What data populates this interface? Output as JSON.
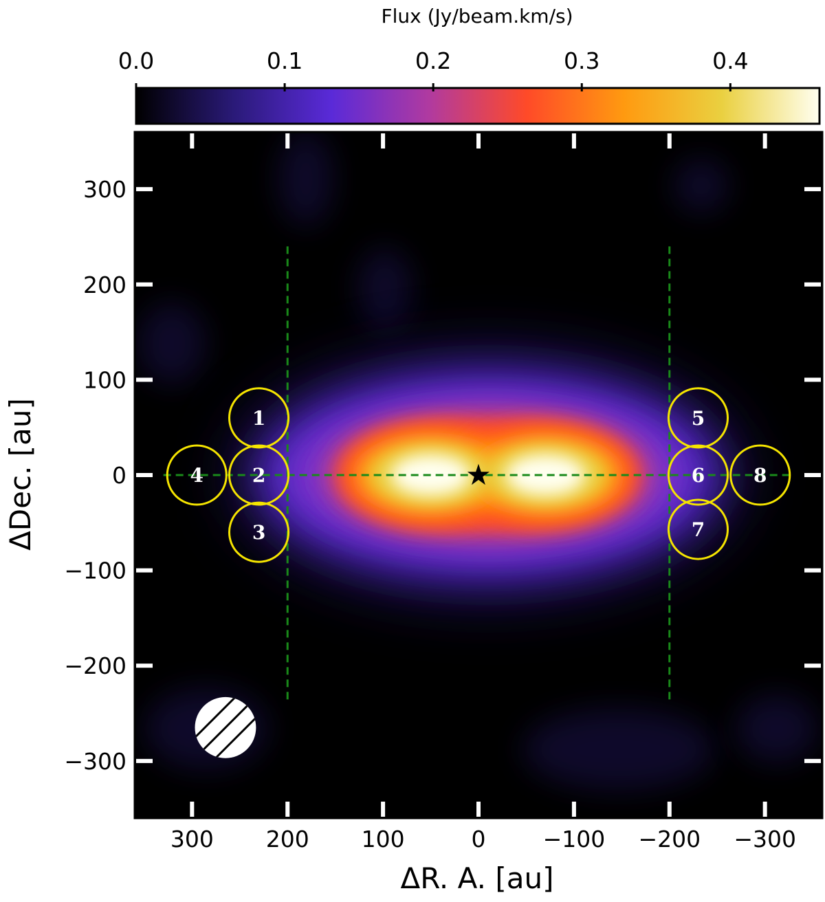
{
  "chart_data": {
    "type": "heatmap",
    "title": "",
    "xlabel": "ΔR. A.  [au]",
    "ylabel": "ΔDec.  [au]",
    "xlim": [
      360,
      -360
    ],
    "ylim": [
      -360,
      360
    ],
    "x_ticks": [
      300,
      200,
      100,
      0,
      -100,
      -200,
      -300
    ],
    "x_tick_labels": [
      "300",
      "200",
      "100",
      "0",
      "−100",
      "−200",
      "−300"
    ],
    "y_ticks": [
      300,
      200,
      100,
      0,
      -100,
      -200,
      -300
    ],
    "y_tick_labels": [
      "300",
      "200",
      "100",
      "0",
      "−100",
      "−200",
      "−300"
    ],
    "colorbar": {
      "label": "Flux (Jy/beam.km/s)",
      "range": [
        0.0,
        0.46
      ],
      "ticks": [
        0.0,
        0.1,
        0.2,
        0.3,
        0.4
      ],
      "tick_labels": [
        "0.0",
        "0.1",
        "0.2",
        "0.3",
        "0.4"
      ],
      "colormap": [
        "#000000",
        "#2a1a78",
        "#5a2ad8",
        "#b03aa0",
        "#ff4a28",
        "#ff9a10",
        "#ead040",
        "#fffff0"
      ]
    },
    "emission_peaks": [
      {
        "x": 50,
        "y": 0,
        "flux": 0.46
      },
      {
        "x": -70,
        "y": 0,
        "flux": 0.46
      }
    ],
    "star": {
      "x": 0,
      "y": 0,
      "symbol": "★"
    },
    "dashed_lines": [
      {
        "from": [
          330,
          0
        ],
        "to": [
          -330,
          0
        ],
        "color": "#1a8a1a"
      },
      {
        "from": [
          200,
          240
        ],
        "to": [
          200,
          -240
        ],
        "color": "#1a8a1a"
      },
      {
        "from": [
          -200,
          240
        ],
        "to": [
          -200,
          -240
        ],
        "color": "#1a8a1a"
      }
    ],
    "regions": [
      {
        "label": "1",
        "x": 230,
        "y": 60,
        "radius": 31
      },
      {
        "label": "2",
        "x": 230,
        "y": 0,
        "radius": 31
      },
      {
        "label": "3",
        "x": 230,
        "y": -60,
        "radius": 31
      },
      {
        "label": "4",
        "x": 295,
        "y": 0,
        "radius": 31
      },
      {
        "label": "5",
        "x": -230,
        "y": 60,
        "radius": 31
      },
      {
        "label": "6",
        "x": -230,
        "y": 0,
        "radius": 31
      },
      {
        "label": "7",
        "x": -230,
        "y": -57,
        "radius": 31
      },
      {
        "label": "8",
        "x": -295,
        "y": 0,
        "radius": 31
      }
    ],
    "region_color": "#f5e400",
    "beam": {
      "x": 265,
      "y": -265,
      "diameter": 64,
      "hatch": "diagonal"
    }
  }
}
